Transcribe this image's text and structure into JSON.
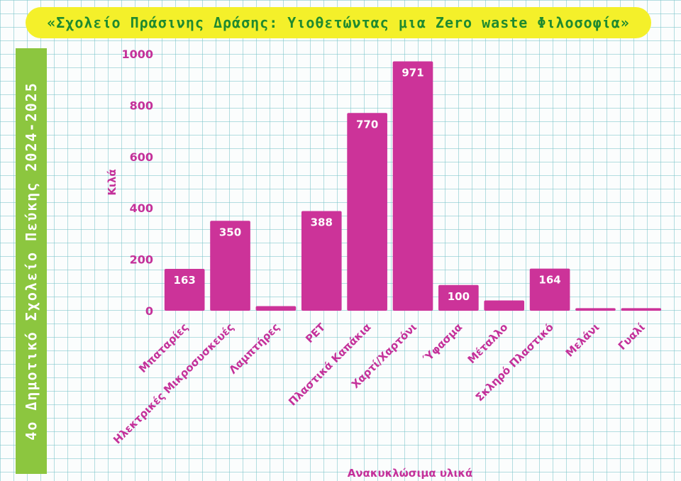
{
  "banner": {
    "title": "«Σχολείο Πράσινης Δράσης: Υιοθετώντας μια Zero waste Φιλοσοφία»",
    "side_text": "4ο Δημοτικό Σχολείο Πεύκης 2024-2025"
  },
  "colors": {
    "bar": "#cc3399",
    "text": "#c4319a",
    "title_bg": "#f4f02a",
    "title_text": "#1f8a2f",
    "side_bg": "#8cc63f"
  },
  "chart_data": {
    "type": "bar",
    "title": "",
    "xlabel": "Ανακυκλώσιμα υλικά",
    "ylabel": "Κιλά",
    "ylim": [
      0,
      1000
    ],
    "yticks": [
      0,
      200,
      400,
      600,
      800,
      1000
    ],
    "grid": false,
    "categories": [
      "Μπαταρίες",
      "Ηλεκτρικές Μικροσυσκευές",
      "Λαμπτήρες",
      "PET",
      "Πλαστικά Καπάκια",
      "Χαρτί/Χαρτόνι",
      "Ύφασμα",
      "Μέταλλο",
      "Σκληρό Πλαστικό",
      "Μελάνι",
      "Γυαλί"
    ],
    "values": [
      163,
      350,
      18,
      388,
      770,
      971,
      100,
      40,
      164,
      10,
      10
    ],
    "data_labels": [
      "163",
      "350",
      "",
      "388",
      "770",
      "971",
      "100",
      "",
      "164",
      "",
      ""
    ]
  }
}
